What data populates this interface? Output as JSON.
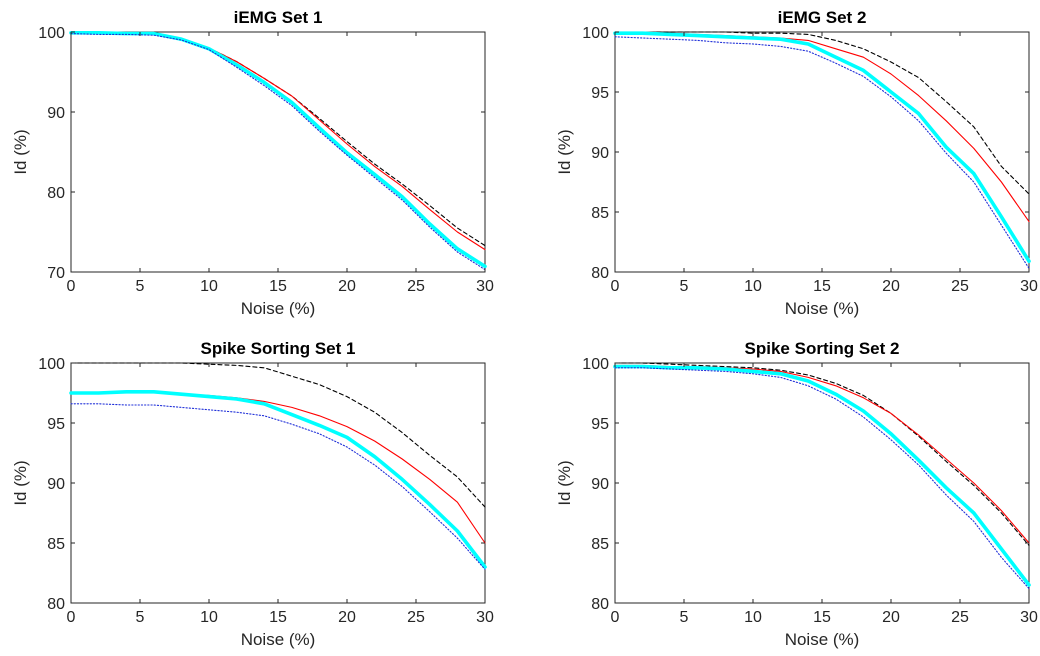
{
  "figure": {
    "background": "#ffffff"
  },
  "series_styles": [
    {
      "color": "#000000",
      "dash": "4,3",
      "width": 1.1
    },
    {
      "color": "#ff0000",
      "dash": "",
      "width": 1.1
    },
    {
      "color": "#00ffff",
      "dash": "",
      "width": 3.6
    },
    {
      "color": "#1f2fd8",
      "dash": "1.2,2",
      "width": 1.1
    }
  ],
  "chart_data": [
    {
      "type": "line",
      "title": "iEMG Set 1",
      "xlabel": "Noise (%)",
      "ylabel": "Id (%)",
      "xlim": [
        0,
        30
      ],
      "ylim": [
        70,
        100
      ],
      "xticks": [
        0,
        5,
        10,
        15,
        20,
        25,
        30
      ],
      "yticks": [
        70,
        80,
        90,
        100
      ],
      "x": [
        0,
        2,
        4,
        6,
        8,
        10,
        12,
        14,
        16,
        18,
        20,
        22,
        24,
        26,
        28,
        30
      ],
      "series": [
        {
          "values": [
            100,
            100,
            99.9,
            99.8,
            99.2,
            98.0,
            96.3,
            94.2,
            92.0,
            89.2,
            86.3,
            83.5,
            81.0,
            78.3,
            75.5,
            73.3
          ]
        },
        {
          "values": [
            100,
            99.9,
            99.8,
            99.7,
            99.1,
            98.0,
            96.3,
            94.2,
            92.0,
            89.0,
            86.0,
            83.2,
            80.7,
            77.8,
            75.0,
            72.8
          ]
        },
        {
          "values": [
            99.9,
            99.9,
            99.8,
            99.8,
            99.1,
            97.9,
            95.9,
            93.7,
            91.2,
            88.0,
            84.9,
            82.2,
            79.4,
            76.0,
            72.9,
            70.7
          ]
        },
        {
          "values": [
            99.8,
            99.7,
            99.7,
            99.6,
            99.0,
            97.8,
            95.6,
            93.3,
            90.8,
            87.6,
            84.6,
            81.8,
            79.0,
            75.6,
            72.5,
            70.3
          ]
        }
      ]
    },
    {
      "type": "line",
      "title": "iEMG Set 2",
      "xlabel": "Noise (%)",
      "ylabel": "Id (%)",
      "xlim": [
        0,
        30
      ],
      "ylim": [
        80,
        100
      ],
      "xticks": [
        0,
        5,
        10,
        15,
        20,
        25,
        30
      ],
      "yticks": [
        80,
        85,
        90,
        95,
        100
      ],
      "x": [
        0,
        2,
        4,
        6,
        8,
        10,
        12,
        14,
        16,
        18,
        20,
        22,
        24,
        26,
        28,
        30
      ],
      "series": [
        {
          "values": [
            100,
            100,
            100,
            100,
            100,
            99.9,
            99.9,
            99.8,
            99.3,
            98.6,
            97.5,
            96.2,
            94.2,
            92.1,
            88.8,
            86.5
          ]
        },
        {
          "values": [
            100,
            100,
            99.9,
            99.8,
            99.7,
            99.6,
            99.5,
            99.3,
            98.6,
            97.9,
            96.5,
            94.7,
            92.6,
            90.3,
            87.5,
            84.2
          ]
        },
        {
          "values": [
            99.9,
            99.9,
            99.8,
            99.7,
            99.6,
            99.5,
            99.4,
            99.0,
            97.9,
            96.8,
            95.0,
            93.2,
            90.4,
            88.2,
            84.6,
            80.9
          ]
        },
        {
          "values": [
            99.6,
            99.5,
            99.4,
            99.3,
            99.1,
            99.0,
            98.8,
            98.4,
            97.4,
            96.3,
            94.6,
            92.6,
            89.9,
            87.5,
            83.9,
            80.3
          ]
        }
      ]
    },
    {
      "type": "line",
      "title": "Spike Sorting Set 1",
      "xlabel": "Noise (%)",
      "ylabel": "Id (%)",
      "xlim": [
        0,
        30
      ],
      "ylim": [
        80,
        100
      ],
      "xticks": [
        0,
        5,
        10,
        15,
        20,
        25,
        30
      ],
      "yticks": [
        80,
        85,
        90,
        95,
        100
      ],
      "x": [
        0,
        2,
        4,
        6,
        8,
        10,
        12,
        14,
        16,
        18,
        20,
        22,
        24,
        26,
        28,
        30
      ],
      "series": [
        {
          "values": [
            100,
            100,
            100,
            100,
            100,
            99.9,
            99.8,
            99.6,
            98.9,
            98.2,
            97.2,
            95.9,
            94.2,
            92.3,
            90.5,
            88.0
          ]
        },
        {
          "values": [
            97.5,
            97.5,
            97.6,
            97.6,
            97.4,
            97.3,
            97.1,
            96.8,
            96.3,
            95.6,
            94.7,
            93.5,
            92.0,
            90.3,
            88.4,
            85.0
          ]
        },
        {
          "values": [
            97.5,
            97.5,
            97.6,
            97.6,
            97.4,
            97.2,
            97.0,
            96.6,
            95.7,
            94.8,
            93.8,
            92.2,
            90.3,
            88.2,
            86.0,
            83.0
          ]
        },
        {
          "values": [
            96.6,
            96.6,
            96.5,
            96.5,
            96.3,
            96.1,
            95.9,
            95.6,
            94.9,
            94.1,
            93.0,
            91.5,
            89.7,
            87.6,
            85.4,
            82.8
          ]
        }
      ]
    },
    {
      "type": "line",
      "title": "Spike Sorting Set 2",
      "xlabel": "Noise (%)",
      "ylabel": "Id (%)",
      "xlim": [
        0,
        30
      ],
      "ylim": [
        80,
        100
      ],
      "xticks": [
        0,
        5,
        10,
        15,
        20,
        25,
        30
      ],
      "yticks": [
        80,
        85,
        90,
        95,
        100
      ],
      "x": [
        0,
        2,
        4,
        6,
        8,
        10,
        12,
        14,
        16,
        18,
        20,
        22,
        24,
        26,
        28,
        30
      ],
      "series": [
        {
          "values": [
            100,
            100,
            99.9,
            99.8,
            99.7,
            99.6,
            99.4,
            99.0,
            98.3,
            97.3,
            95.8,
            93.9,
            91.8,
            89.8,
            87.5,
            84.8
          ]
        },
        {
          "values": [
            99.8,
            99.8,
            99.7,
            99.7,
            99.6,
            99.5,
            99.3,
            98.8,
            98.1,
            97.1,
            95.8,
            94.0,
            92.0,
            90.0,
            87.7,
            85.0
          ]
        },
        {
          "values": [
            99.7,
            99.7,
            99.6,
            99.6,
            99.5,
            99.3,
            99.1,
            98.5,
            97.4,
            96.0,
            94.1,
            91.9,
            89.6,
            87.5,
            84.5,
            81.5
          ]
        },
        {
          "values": [
            99.6,
            99.6,
            99.5,
            99.4,
            99.3,
            99.1,
            98.8,
            98.1,
            97.0,
            95.5,
            93.6,
            91.5,
            89.0,
            86.8,
            83.8,
            81.2
          ]
        }
      ]
    }
  ]
}
